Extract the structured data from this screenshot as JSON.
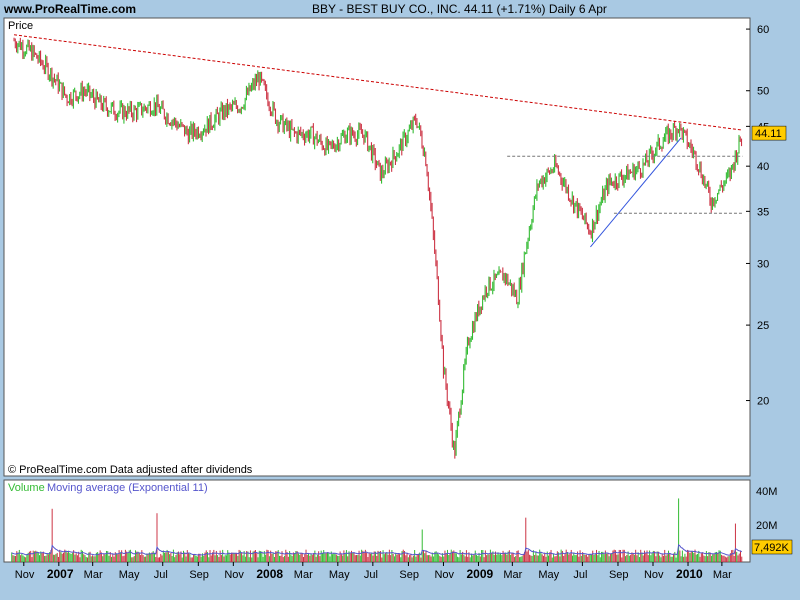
{
  "header": {
    "site": "www.ProRealTime.com",
    "symbol_line": "BBY - BEST BUY CO., INC.     44.11 (+1.71%)     Daily  6 Apr"
  },
  "price_panel": {
    "label": "Price",
    "last_price_badge": "44.11",
    "copyright": "© ProRealTime.com  Data adjusted after dividends"
  },
  "volume_panel": {
    "label_volume": "Volume",
    "label_ma": "Moving average (Exponential 11)",
    "last_volume_badge": "7,492K",
    "y_ticks": [
      "40M",
      "20M"
    ]
  },
  "colors": {
    "background": "#a9c9e3",
    "plot_bg": "#ffffff",
    "up": "#33bb33",
    "down": "#cc3344",
    "resistance": "#cc0000",
    "support_trend": "#3355dd",
    "level_lines": "#777777",
    "badge": "#ffcc00",
    "ma_line": "#5555cc"
  },
  "chart_data": [
    {
      "type": "line",
      "title": "BBY - BEST BUY CO., INC.",
      "ylabel": "Price",
      "y_scale": "log",
      "ylim": [
        16,
        62
      ],
      "y_ticks": [
        60,
        50,
        45,
        40,
        35,
        30,
        25,
        20
      ],
      "x_ticks": [
        "Nov",
        "2007",
        "Mar",
        "May",
        "Jul",
        "Sep",
        "Nov",
        "2008",
        "Mar",
        "May",
        "Jul",
        "Sep",
        "Nov",
        "2009",
        "Mar",
        "May",
        "Jul",
        "Sep",
        "Nov",
        "2010",
        "Mar"
      ],
      "major_x_ticks": [
        "2007",
        "2008",
        "2009",
        "2010"
      ],
      "x": [
        "2006-10-15",
        "2006-11-15",
        "2006-12-15",
        "2007-01-15",
        "2007-02-15",
        "2007-03-15",
        "2007-04-15",
        "2007-05-15",
        "2007-06-15",
        "2007-07-15",
        "2007-08-15",
        "2007-09-15",
        "2007-10-15",
        "2007-11-15",
        "2007-12-15",
        "2008-01-15",
        "2008-02-15",
        "2008-03-15",
        "2008-04-15",
        "2008-05-15",
        "2008-06-15",
        "2008-07-15",
        "2008-08-15",
        "2008-09-15",
        "2008-10-01",
        "2008-10-15",
        "2008-11-01",
        "2008-11-20",
        "2008-12-15",
        "2009-01-15",
        "2009-02-15",
        "2009-03-10",
        "2009-04-15",
        "2009-05-15",
        "2009-06-15",
        "2009-07-15",
        "2009-08-15",
        "2009-09-15",
        "2009-10-15",
        "2009-11-15",
        "2009-12-15",
        "2010-01-15",
        "2010-02-10",
        "2010-03-15",
        "2010-04-06"
      ],
      "series": [
        {
          "name": "BBY",
          "values": [
            58,
            56,
            53,
            49,
            50,
            48,
            47,
            47,
            48,
            46,
            44,
            45,
            47,
            48,
            52,
            46,
            44,
            44,
            42,
            44,
            44,
            39,
            42,
            46,
            41,
            32,
            22,
            17,
            24,
            28,
            29,
            27,
            38,
            40,
            36,
            33,
            38,
            39,
            40,
            43,
            45,
            41,
            36,
            39,
            44.11
          ]
        }
      ],
      "annotations": [
        {
          "type": "trendline",
          "label": "resistance",
          "from": [
            "2006-10-15",
            59
          ],
          "to": [
            "2010-04-06",
            44.5
          ]
        },
        {
          "type": "trendline",
          "label": "support",
          "from": [
            "2009-07-15",
            31.5
          ],
          "to": [
            "2009-12-20",
            43.5
          ]
        },
        {
          "type": "hline",
          "value": 41.2,
          "from": "2009-02-20",
          "to": "2010-04-06"
        },
        {
          "type": "hline",
          "value": 34.8,
          "from": "2009-08-25",
          "to": "2010-04-06"
        }
      ]
    },
    {
      "type": "bar",
      "ylabel": "Volume",
      "ylim_millions": [
        0,
        46
      ],
      "y_ticks_millions": [
        40,
        20
      ],
      "typical_volume_millions": 6,
      "spikes": [
        {
          "date": "2006-12-20",
          "value_millions": 36
        },
        {
          "date": "2007-06-20",
          "value_millions": 33
        },
        {
          "date": "2008-09-25",
          "value_millions": 22
        },
        {
          "date": "2009-03-25",
          "value_millions": 30
        },
        {
          "date": "2009-12-15",
          "value_millions": 43
        },
        {
          "date": "2010-03-25",
          "value_millions": 26
        }
      ],
      "last_value": "7,492K"
    }
  ]
}
